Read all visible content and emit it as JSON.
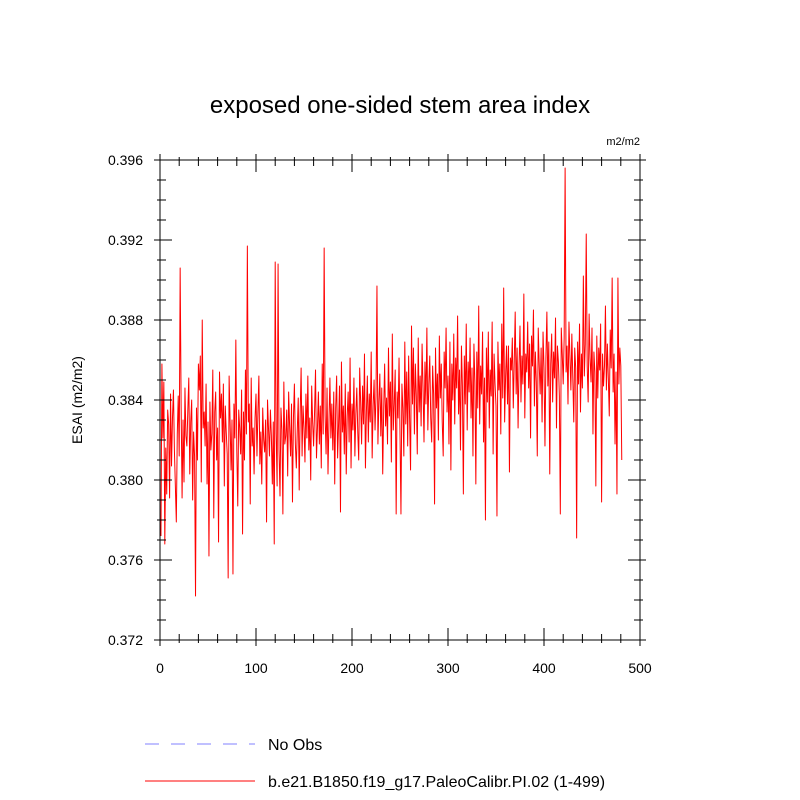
{
  "chart_data": {
    "type": "line",
    "title": "exposed one-sided stem area index",
    "units_label": "m2/m2",
    "ylabel": "ESAI  (m2/m2)",
    "xlabel": "",
    "xlim": [
      0,
      500
    ],
    "ylim": [
      0.372,
      0.396
    ],
    "x_ticks": [
      0,
      100,
      200,
      300,
      400,
      500
    ],
    "x_tick_labels": [
      "0",
      "100",
      "200",
      "300",
      "400",
      "500"
    ],
    "y_ticks": [
      0.372,
      0.376,
      0.38,
      0.384,
      0.388,
      0.392,
      0.396
    ],
    "y_tick_labels": [
      "0.372",
      "0.376",
      "0.380",
      "0.384",
      "0.388",
      "0.392",
      "0.396"
    ],
    "grid": false,
    "legend_position": "bottom-left",
    "series": [
      {
        "name": "No Obs",
        "color": "#8080ff",
        "dash": "dashed",
        "values": []
      },
      {
        "name": "b.e21.B1850.f19_g17.PaleoCalibr.PI.02 (1-499)",
        "color": "#ff0000",
        "dash": "solid",
        "x_start": 1,
        "x_step": 1,
        "values": [
          0.3772,
          0.3858,
          0.3821,
          0.3849,
          0.3768,
          0.3816,
          0.3793,
          0.3835,
          0.3828,
          0.3791,
          0.3843,
          0.3807,
          0.3831,
          0.3845,
          0.3815,
          0.3797,
          0.3779,
          0.3823,
          0.3842,
          0.3812,
          0.3906,
          0.3838,
          0.3791,
          0.383,
          0.3799,
          0.3846,
          0.3822,
          0.3817,
          0.3835,
          0.3851,
          0.3803,
          0.3829,
          0.384,
          0.379,
          0.3824,
          0.3812,
          0.3742,
          0.3836,
          0.381,
          0.3858,
          0.3845,
          0.3862,
          0.3799,
          0.388,
          0.3826,
          0.3834,
          0.3817,
          0.3848,
          0.3798,
          0.3829,
          0.3762,
          0.3839,
          0.3815,
          0.3823,
          0.3855,
          0.3781,
          0.3834,
          0.3844,
          0.381,
          0.3826,
          0.3769,
          0.3854,
          0.3831,
          0.3843,
          0.3819,
          0.3848,
          0.3797,
          0.3837,
          0.3824,
          0.3813,
          0.3751,
          0.3852,
          0.3829,
          0.3805,
          0.383,
          0.3753,
          0.3838,
          0.3821,
          0.387,
          0.3815,
          0.3787,
          0.3835,
          0.3826,
          0.3813,
          0.3845,
          0.3773,
          0.3834,
          0.381,
          0.3855,
          0.3823,
          0.3917,
          0.3829,
          0.3838,
          0.3788,
          0.3851,
          0.3817,
          0.3826,
          0.3803,
          0.3831,
          0.3843,
          0.3812,
          0.3834,
          0.3852,
          0.3808,
          0.3824,
          0.3798,
          0.3836,
          0.382,
          0.3814,
          0.383,
          0.3779,
          0.384,
          0.3826,
          0.3812,
          0.3835,
          0.3822,
          0.3798,
          0.3829,
          0.3768,
          0.3909,
          0.3823,
          0.3797,
          0.3908,
          0.3815,
          0.3792,
          0.3836,
          0.3825,
          0.3783,
          0.3849,
          0.3818,
          0.3822,
          0.3835,
          0.3802,
          0.3844,
          0.3827,
          0.3812,
          0.3838,
          0.3789,
          0.3831,
          0.3848,
          0.3818,
          0.3806,
          0.3825,
          0.3841,
          0.3795,
          0.3833,
          0.3856,
          0.3812,
          0.3837,
          0.3826,
          0.3809,
          0.3843,
          0.3821,
          0.3852,
          0.3815,
          0.3831,
          0.38,
          0.3847,
          0.3829,
          0.3817,
          0.3834,
          0.3855,
          0.3811,
          0.3826,
          0.3844,
          0.3818,
          0.3837,
          0.3806,
          0.3858,
          0.3823,
          0.3916,
          0.3832,
          0.3813,
          0.3846,
          0.3803,
          0.3829,
          0.3851,
          0.3821,
          0.3838,
          0.3815,
          0.3844,
          0.3798,
          0.3836,
          0.3852,
          0.3811,
          0.3828,
          0.3847,
          0.3784,
          0.3859,
          0.3824,
          0.3837,
          0.3813,
          0.3848,
          0.3803,
          0.3832,
          0.3844,
          0.3819,
          0.3861,
          0.3806,
          0.3838,
          0.3825,
          0.3851,
          0.3812,
          0.3833,
          0.3846,
          0.3824,
          0.381,
          0.3856,
          0.3839,
          0.3818,
          0.3847,
          0.3828,
          0.3863,
          0.3806,
          0.3834,
          0.3852,
          0.3819,
          0.3843,
          0.3829,
          0.3864,
          0.3811,
          0.3837,
          0.385,
          0.3825,
          0.3842,
          0.3897,
          0.3818,
          0.3839,
          0.3853,
          0.3822,
          0.3846,
          0.3803,
          0.3835,
          0.3858,
          0.3827,
          0.3841,
          0.3818,
          0.3866,
          0.3832,
          0.3849,
          0.3809,
          0.3873,
          0.3825,
          0.3838,
          0.3855,
          0.3783,
          0.3844,
          0.3831,
          0.3861,
          0.3823,
          0.3783,
          0.3848,
          0.3836,
          0.3812,
          0.3869,
          0.3828,
          0.3854,
          0.3817,
          0.3862,
          0.3831,
          0.3805,
          0.3877,
          0.3838,
          0.3866,
          0.3823,
          0.3858,
          0.3842,
          0.3813,
          0.3871,
          0.3834,
          0.3852,
          0.3827,
          0.3868,
          0.3846,
          0.3819,
          0.3859,
          0.3838,
          0.3876,
          0.3825,
          0.3848,
          0.3862,
          0.3831,
          0.3819,
          0.3857,
          0.3843,
          0.3788,
          0.3866,
          0.3836,
          0.3853,
          0.382,
          0.3872,
          0.3841,
          0.3858,
          0.3829,
          0.3812,
          0.3864,
          0.3846,
          0.3876,
          0.3834,
          0.3852,
          0.3818,
          0.3869,
          0.3805,
          0.3858,
          0.384,
          0.3873,
          0.3828,
          0.3861,
          0.3846,
          0.3882,
          0.3833,
          0.3855,
          0.3815,
          0.3867,
          0.3847,
          0.3793,
          0.3862,
          0.3838,
          0.3878,
          0.3825,
          0.3859,
          0.3844,
          0.3871,
          0.3831,
          0.3856,
          0.3812,
          0.3868,
          0.3849,
          0.3798,
          0.3864,
          0.3836,
          0.3887,
          0.3828,
          0.3857,
          0.3843,
          0.3874,
          0.3819,
          0.3851,
          0.378,
          0.3866,
          0.3839,
          0.3874,
          0.3826,
          0.3855,
          0.3842,
          0.3879,
          0.3813,
          0.3863,
          0.3848,
          0.3837,
          0.3782,
          0.3869,
          0.3845,
          0.3858,
          0.3823,
          0.3878,
          0.3841,
          0.3896,
          0.3829,
          0.3852,
          0.3867,
          0.3838,
          0.3867,
          0.3804,
          0.3861,
          0.3855,
          0.3871,
          0.3836,
          0.3859,
          0.3884,
          0.3843,
          0.3866,
          0.3826,
          0.3857,
          0.3877,
          0.3839,
          0.3862,
          0.3848,
          0.3893,
          0.3831,
          0.3863,
          0.3854,
          0.3879,
          0.3846,
          0.3868,
          0.3821,
          0.3872,
          0.3857,
          0.3885,
          0.3837,
          0.3864,
          0.3849,
          0.3812,
          0.3876,
          0.3858,
          0.3843,
          0.3866,
          0.3829,
          0.3874,
          0.3856,
          0.3817,
          0.3861,
          0.3884,
          0.3847,
          0.3869,
          0.3803,
          0.3858,
          0.3873,
          0.3839,
          0.3864,
          0.3851,
          0.3881,
          0.3826,
          0.3867,
          0.3859,
          0.3842,
          0.3783,
          0.3876,
          0.3863,
          0.3848,
          0.3871,
          0.3956,
          0.3854,
          0.3867,
          0.3838,
          0.3879,
          0.3862,
          0.3845,
          0.3873,
          0.3851,
          0.3829,
          0.3866,
          0.3856,
          0.3771,
          0.3869,
          0.3848,
          0.3878,
          0.3834,
          0.3863,
          0.3846,
          0.3902,
          0.3852,
          0.3868,
          0.3923,
          0.3857,
          0.3839,
          0.3883,
          0.3861,
          0.3849,
          0.3876,
          0.3823,
          0.3864,
          0.3854,
          0.3797,
          0.3872,
          0.3841,
          0.3866,
          0.3855,
          0.3878,
          0.3789,
          0.3863,
          0.3847,
          0.3857,
          0.3887,
          0.3845,
          0.3868,
          0.3851,
          0.3832,
          0.3875,
          0.3856,
          0.3901,
          0.3844,
          0.3863,
          0.3818,
          0.3854,
          0.3793,
          0.3901,
          0.3848,
          0.3866,
          0.3857,
          0.381
        ]
      }
    ]
  }
}
